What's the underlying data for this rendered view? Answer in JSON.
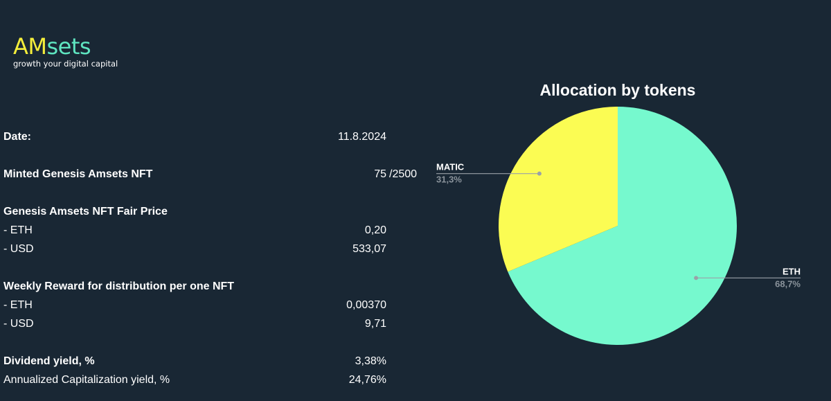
{
  "logo": {
    "am": "AM",
    "sets": "sets",
    "tagline": "growth your digital capital",
    "colors": {
      "am": "#f4ee3b",
      "sets": "#5fe6c1"
    }
  },
  "rows": {
    "date": {
      "label": "Date:",
      "value": "11.8.2024"
    },
    "minted": {
      "label": "Minted Genesis Amsets NFT",
      "value": "75",
      "suffix": "/2500"
    },
    "fair_price": {
      "label": "Genesis Amsets NFT Fair Price",
      "eth": {
        "label": "- ETH",
        "value": "0,20"
      },
      "usd": {
        "label": "- USD",
        "value": "533,07"
      }
    },
    "weekly_reward": {
      "label": "Weekly Reward for distribution per one NFT",
      "eth": {
        "label": "- ETH",
        "value": "0,00370"
      },
      "usd": {
        "label": "- USD",
        "value": "9,71"
      }
    },
    "dividend": {
      "label": "Dividend yield, %",
      "value": "3,38%"
    },
    "annualized": {
      "label": "Annualized Capitalization yield, %",
      "value": "24,76%"
    }
  },
  "chart_data": {
    "type": "pie",
    "title": "Allocation by tokens",
    "slices": [
      {
        "label": "ETH",
        "pct_label": "68,7%",
        "value": 68.7,
        "color": "#76f9ce"
      },
      {
        "label": "MATIC",
        "pct_label": "31,3%",
        "value": 31.3,
        "color": "#fbfc53"
      }
    ],
    "start_angle_deg": 0,
    "direction": "clockwise",
    "legend": "none",
    "label_colors": {
      "name": "#ffffff",
      "percent": "#8a939b",
      "leader": "#9aa1a8"
    }
  }
}
